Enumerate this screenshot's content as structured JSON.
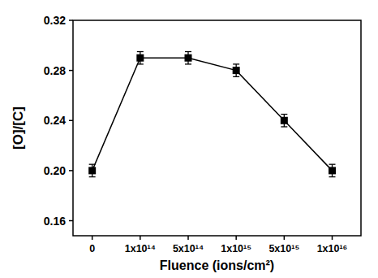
{
  "chart_data": {
    "type": "line",
    "x_label": "Fluence (ions/cm²)",
    "y_label": "[O]/[C]",
    "categories": [
      "0",
      "1x10¹⁴",
      "5x10¹⁴",
      "1x10¹⁵",
      "5x10¹⁵",
      "1x10¹⁶"
    ],
    "values": [
      0.2,
      0.29,
      0.29,
      0.28,
      0.24,
      0.2
    ],
    "errors": [
      0.005,
      0.005,
      0.005,
      0.005,
      0.005,
      0.005
    ],
    "color": "#000000",
    "marker": "square",
    "line_style": "solid",
    "ylim": [
      0.148,
      0.32
    ],
    "yticks": [
      0.16,
      {
        "value": 0.2,
        "label": "0.20"
      },
      0.24,
      0.28,
      0.32
    ],
    "grid": false
  }
}
